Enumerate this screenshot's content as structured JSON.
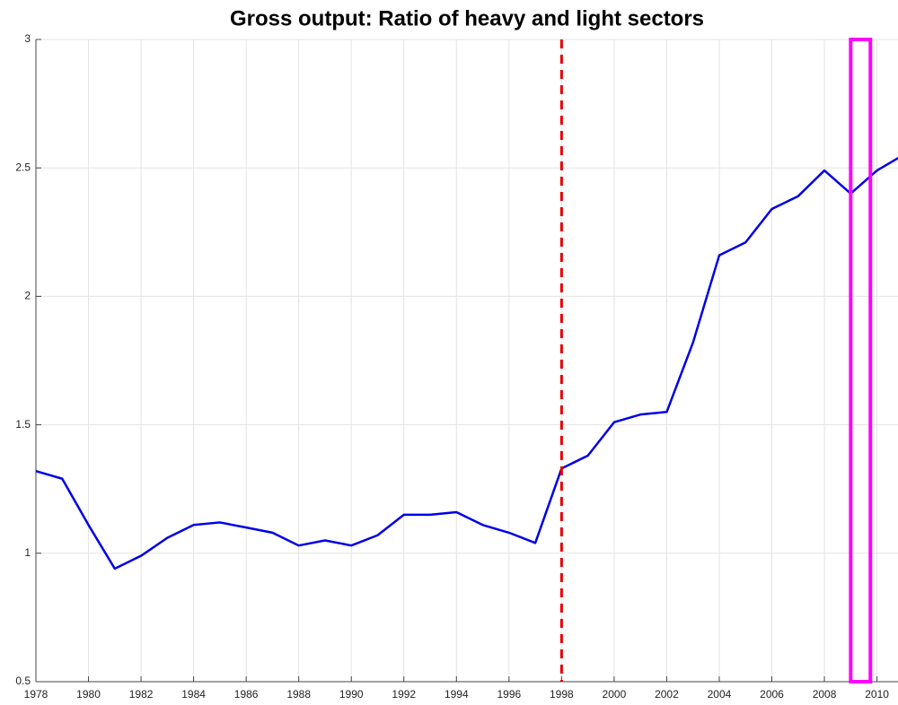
{
  "chart_data": {
    "type": "line",
    "title": "Gross output: Ratio of heavy and light sectors",
    "x": [
      1978,
      1979,
      1980,
      1981,
      1982,
      1983,
      1984,
      1985,
      1986,
      1987,
      1988,
      1989,
      1990,
      1991,
      1992,
      1993,
      1994,
      1995,
      1996,
      1997,
      1998,
      1999,
      2000,
      2001,
      2002,
      2003,
      2004,
      2005,
      2006,
      2007,
      2008,
      2009,
      2010,
      2011
    ],
    "series": [
      {
        "color": "#0000e6",
        "values": [
          1.32,
          1.29,
          1.11,
          0.94,
          0.99,
          1.06,
          1.11,
          1.12,
          1.1,
          1.08,
          1.03,
          1.05,
          1.03,
          1.07,
          1.15,
          1.15,
          1.16,
          1.11,
          1.08,
          1.04,
          1.33,
          1.38,
          1.51,
          1.54,
          1.55,
          1.82,
          2.16,
          2.21,
          2.34,
          2.39,
          2.49,
          2.4,
          2.49,
          2.55
        ]
      }
    ],
    "xlim": [
      1978,
      2010.8
    ],
    "xticks": [
      1978,
      1980,
      1982,
      1984,
      1986,
      1988,
      1990,
      1992,
      1994,
      1996,
      1998,
      2000,
      2002,
      2004,
      2006,
      2008,
      2010
    ],
    "ylim": [
      0.5,
      3
    ],
    "yticks": [
      0.5,
      1,
      1.5,
      2,
      2.5,
      3
    ],
    "grid": true,
    "vline": {
      "x": 1998,
      "color": "#e60000"
    },
    "highlight": {
      "x": [
        2009,
        2009.75
      ],
      "color": "#ff00ff"
    }
  }
}
